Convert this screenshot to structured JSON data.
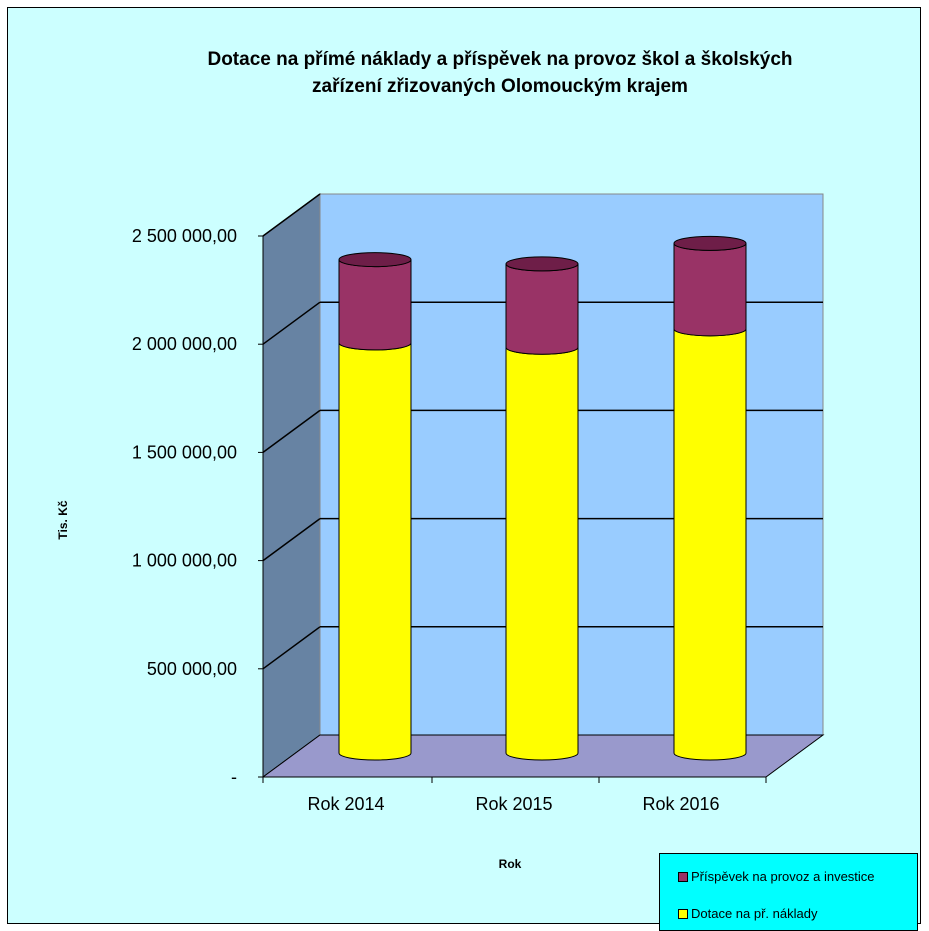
{
  "title_lines": [
    "Dotace na přímé náklady a příspěvek na provoz škol a školských",
    "zařízení zřizovaných Olomouckým krajem"
  ],
  "ylabel": "Tis. Kč",
  "xlabel": "Rok",
  "colors": {
    "dotace": "#ffff00",
    "prispevek": "#993366",
    "wall_back": "#99ccff",
    "wall_side": "#6783a3",
    "floor": "#9999cc",
    "background": "#ccffff",
    "legend_bg": "#00ffff"
  },
  "legend": {
    "prispevek": "Příspěvek na provoz a investice",
    "dotace": "Dotace na př. náklady"
  },
  "chart_data": {
    "type": "bar",
    "stacked": true,
    "title": "Dotace na přímé náklady a příspěvek na provoz škol a školských zařízení zřizovaných Olomouckým krajem",
    "xlabel": "Rok",
    "ylabel": "Tis. Kč",
    "categories": [
      "Rok 2014",
      "Rok 2015",
      "Rok 2016"
    ],
    "series": [
      {
        "name": "Dotace na př. náklady",
        "values": [
          1895000,
          1875000,
          1960000
        ]
      },
      {
        "name": "Příspěvek na provoz a investice",
        "values": [
          385000,
          385000,
          395000
        ]
      }
    ],
    "yticks": [
      "-",
      "500 000,00",
      "1 000 000,00",
      "1 500 000,00",
      "2 000 000,00",
      "2 500 000,00"
    ],
    "ylim": [
      0,
      2500000
    ],
    "grid": true,
    "legend_position": "bottom-right"
  }
}
